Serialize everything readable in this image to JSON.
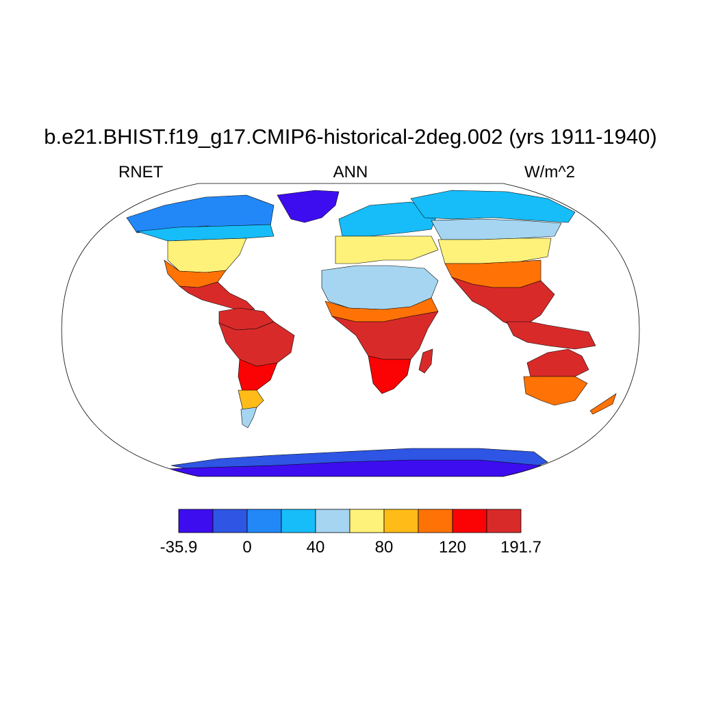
{
  "title": "b.e21.BHIST.f19_g17.CMIP6-historical-2deg.002 (yrs 1911-1940)",
  "variable": "RNET",
  "season": "ANN",
  "units": "W/m^2",
  "colorbar": {
    "colors": [
      "#3d0df0",
      "#2e55e3",
      "#2288f8",
      "#17bdf9",
      "#a5d5f1",
      "#fff27a",
      "#ffbc18",
      "#ff7306",
      "#fb0204",
      "#d92a2a"
    ],
    "labels": [
      {
        "text": "-35.9",
        "index": 0
      },
      {
        "text": "0",
        "index": 2
      },
      {
        "text": "40",
        "index": 4
      },
      {
        "text": "80",
        "index": 6
      },
      {
        "text": "120",
        "index": 8
      },
      {
        "text": "191.7",
        "index": 10
      }
    ]
  },
  "map": {
    "projection": "Robinson",
    "regions": [
      {
        "name": "north-america-arctic",
        "level": 2
      },
      {
        "name": "north-america-canada",
        "level": 3
      },
      {
        "name": "north-america-midlat",
        "level": 5
      },
      {
        "name": "north-america-south",
        "level": 7
      },
      {
        "name": "central-america",
        "level": 9
      },
      {
        "name": "greenland",
        "level": 0
      },
      {
        "name": "south-america-north",
        "level": 9
      },
      {
        "name": "south-america-amazon",
        "level": 10
      },
      {
        "name": "south-america-mid",
        "level": 8
      },
      {
        "name": "south-america-south",
        "level": 6
      },
      {
        "name": "patagonia",
        "level": 4
      },
      {
        "name": "europe-north",
        "level": 3
      },
      {
        "name": "europe-south",
        "level": 5
      },
      {
        "name": "sahara",
        "level": 4
      },
      {
        "name": "sahel",
        "level": 7
      },
      {
        "name": "africa-tropics",
        "level": 9
      },
      {
        "name": "africa-south",
        "level": 8
      },
      {
        "name": "madagascar",
        "level": 9
      },
      {
        "name": "siberia-north",
        "level": 3
      },
      {
        "name": "asia-north",
        "level": 4
      },
      {
        "name": "asia-mid",
        "level": 5
      },
      {
        "name": "asia-south-mid",
        "level": 7
      },
      {
        "name": "india-seasia",
        "level": 9
      },
      {
        "name": "maritime-continent",
        "level": 10
      },
      {
        "name": "australia-north",
        "level": 9
      },
      {
        "name": "australia-south",
        "level": 7
      },
      {
        "name": "new-zealand",
        "level": 7
      },
      {
        "name": "antarctica",
        "level": 1
      },
      {
        "name": "antarctica-interior",
        "level": 0
      }
    ]
  }
}
